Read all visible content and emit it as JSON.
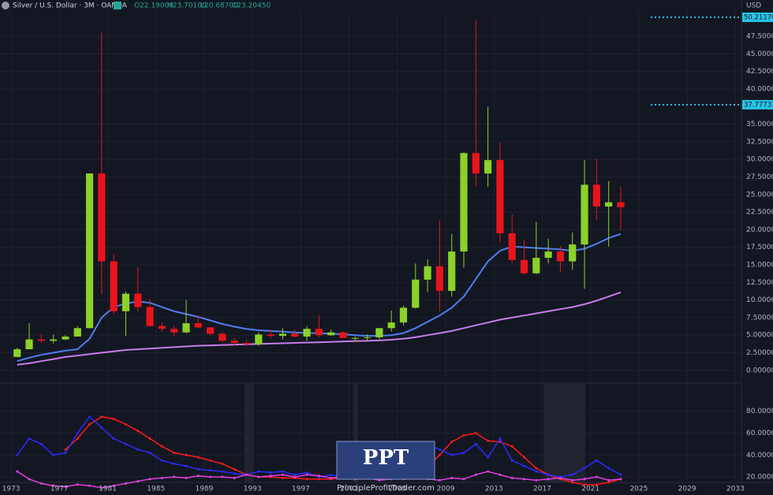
{
  "header": {
    "title": "Silver / U.S. Dollar · 3M · OANDA",
    "ohlc": [
      "O22.19000",
      "H23.70100",
      "L20.68700",
      "C23.20450"
    ],
    "currency": "USD"
  },
  "watermark": {
    "logo": "PPT",
    "site": "PrincipleProfitTrader.com"
  },
  "chart_data": {
    "type": "candlestick",
    "x": [
      1973,
      1974,
      1975,
      1976,
      1977,
      1978,
      1979,
      1980,
      1981,
      1982,
      1983,
      1984,
      1985,
      1986,
      1987,
      1988,
      1989,
      1990,
      1991,
      1992,
      1993,
      1994,
      1995,
      1996,
      1997,
      1998,
      1999,
      2000,
      2001,
      2002,
      2003,
      2004,
      2005,
      2006,
      2007,
      2008,
      2009,
      2010,
      2011,
      2012,
      2013,
      2014,
      2015,
      2016,
      2017,
      2018,
      2019,
      2020,
      2021,
      2022,
      2023
    ],
    "open": [
      1.9,
      3.0,
      4.4,
      4.2,
      4.4,
      4.8,
      6.0,
      28,
      15.5,
      8.4,
      10.9,
      9.0,
      6.3,
      5.9,
      5.4,
      6.7,
      6.1,
      5.2,
      4.2,
      3.9,
      3.7,
      5.1,
      4.9,
      5.2,
      4.8,
      5.9,
      5.0,
      5.4,
      4.6,
      4.6,
      4.7,
      6.0,
      6.8,
      8.9,
      12.9,
      14.8,
      11.3,
      16.9,
      30.9,
      28.0,
      29.9,
      19.5,
      15.7,
      13.8,
      16.0,
      16.9,
      15.5,
      17.9,
      26.4,
      23.3,
      23.9
    ],
    "high": [
      3.2,
      6.7,
      5.2,
      5.1,
      5.0,
      6.3,
      28.0,
      48,
      16.5,
      11.2,
      14.7,
      10.1,
      6.8,
      6.3,
      10.0,
      7.8,
      6.2,
      5.4,
      4.6,
      4.3,
      5.4,
      5.8,
      6.0,
      5.8,
      6.3,
      7.8,
      5.8,
      5.5,
      4.8,
      5.1,
      6.0,
      8.5,
      9.2,
      15.2,
      15.8,
      21.4,
      19.4,
      31.0,
      49.8,
      37.5,
      32.4,
      22.2,
      18.5,
      21.1,
      18.7,
      17.7,
      19.6,
      29.9,
      30.1,
      26.9,
      26.1
    ],
    "low": [
      1.9,
      3.0,
      3.9,
      3.8,
      4.3,
      4.8,
      6.0,
      10.8,
      8.0,
      4.9,
      8.4,
      6.2,
      5.5,
      4.8,
      5.3,
      6.0,
      5.0,
      3.9,
      3.5,
      3.6,
      3.5,
      4.6,
      4.4,
      4.7,
      4.2,
      4.7,
      4.9,
      4.6,
      4.1,
      4.2,
      4.4,
      5.5,
      6.4,
      8.8,
      11.1,
      8.4,
      10.5,
      14.6,
      26.2,
      26.1,
      18.2,
      15.3,
      13.6,
      13.7,
      15.2,
      13.9,
      14.3,
      11.6,
      21.4,
      17.6,
      19.9
    ],
    "close": [
      3.0,
      4.4,
      4.2,
      4.4,
      4.8,
      6.0,
      28.0,
      15.5,
      8.4,
      10.9,
      9.0,
      6.3,
      5.9,
      5.4,
      6.7,
      6.1,
      5.2,
      4.2,
      3.9,
      3.7,
      5.1,
      4.9,
      5.2,
      4.8,
      5.9,
      5.0,
      5.4,
      4.6,
      4.6,
      4.7,
      6.0,
      6.8,
      8.9,
      12.9,
      14.8,
      11.3,
      16.9,
      30.9,
      28.0,
      29.9,
      19.5,
      15.7,
      13.8,
      16.0,
      16.9,
      15.5,
      17.9,
      26.4,
      23.3,
      23.9,
      23.2
    ],
    "up_color": "#8bd12a",
    "down_color": "#e8151b",
    "overlays": [
      {
        "color": "#4f7df0",
        "values": [
          1.3,
          1.8,
          2.2,
          2.5,
          2.8,
          3.0,
          4.5,
          7.5,
          9.0,
          9.5,
          9.8,
          9.6,
          9.0,
          8.4,
          8.0,
          7.6,
          7.1,
          6.6,
          6.2,
          5.9,
          5.7,
          5.6,
          5.5,
          5.4,
          5.3,
          5.3,
          5.2,
          5.1,
          5.0,
          4.9,
          4.9,
          5.0,
          5.3,
          6.0,
          6.9,
          7.8,
          8.9,
          10.5,
          13.0,
          15.5,
          17.0,
          17.6,
          17.5,
          17.4,
          17.3,
          17.2,
          17.0,
          17.3,
          18.0,
          18.8,
          19.4
        ]
      },
      {
        "color": "#c77dea",
        "values": [
          0.8,
          1.0,
          1.3,
          1.6,
          1.9,
          2.1,
          2.3,
          2.5,
          2.7,
          2.9,
          3.0,
          3.1,
          3.2,
          3.3,
          3.4,
          3.5,
          3.55,
          3.6,
          3.65,
          3.7,
          3.75,
          3.8,
          3.85,
          3.9,
          3.95,
          4.0,
          4.05,
          4.1,
          4.15,
          4.2,
          4.25,
          4.35,
          4.5,
          4.7,
          5.0,
          5.3,
          5.6,
          6.0,
          6.4,
          6.8,
          7.2,
          7.5,
          7.8,
          8.1,
          8.4,
          8.7,
          9.0,
          9.4,
          9.9,
          10.5,
          11.1
        ]
      }
    ],
    "price_lines": [
      {
        "value": 50.2117,
        "label": "50.21170"
      },
      {
        "value": 37.77731,
        "label": "37.77731"
      }
    ],
    "price_line_color": "#29c4e8",
    "xlim": [
      1972.08,
      2033.5
    ],
    "xticks": [
      1973,
      1977,
      1981,
      1985,
      1989,
      1993,
      1997,
      2001,
      2005,
      2009,
      2013,
      2017,
      2021,
      2025,
      2029,
      2033
    ],
    "ylim": [
      -1.7,
      51.1
    ],
    "yticks": [
      {
        "value": 0,
        "label": "0.00000"
      },
      {
        "value": 2.5,
        "label": "2.50000"
      },
      {
        "value": 5,
        "label": "5.00000"
      },
      {
        "value": 7.5,
        "label": "7.50000"
      },
      {
        "value": 10,
        "label": "10.00000"
      },
      {
        "value": 12.5,
        "label": "12.50000"
      },
      {
        "value": 15,
        "label": "15.00000"
      },
      {
        "value": 17.5,
        "label": "17.50000"
      },
      {
        "value": 20,
        "label": "20.00000"
      },
      {
        "value": 22.5,
        "label": "22.50000"
      },
      {
        "value": 25,
        "label": "25.00000"
      },
      {
        "value": 27.5,
        "label": "27.50000"
      },
      {
        "value": 30,
        "label": "30.00000"
      },
      {
        "value": 32.5,
        "label": "32.50000"
      },
      {
        "value": 35,
        "label": "35.00000"
      },
      {
        "value": 40,
        "label": "40.00000"
      },
      {
        "value": 42.5,
        "label": "42.50000"
      },
      {
        "value": 45,
        "label": "45.00000"
      },
      {
        "value": 47.5,
        "label": "47.50000"
      }
    ],
    "grid": true,
    "indicator": {
      "type": "line",
      "ylim": [
        15,
        105
      ],
      "yticks": [
        {
          "value": 20,
          "label": "20.0000"
        },
        {
          "value": 40,
          "label": "40.0000"
        },
        {
          "value": 60,
          "label": "60.0000"
        },
        {
          "value": 80,
          "label": "80.0000"
        }
      ],
      "series": [
        {
          "color": "#ff1a1a",
          "values": [
            null,
            null,
            null,
            null,
            45,
            55,
            68,
            75,
            73,
            68,
            62,
            55,
            48,
            42,
            40,
            38,
            35,
            32,
            27,
            22,
            20,
            20,
            19,
            19,
            18,
            18,
            18,
            19,
            20,
            20,
            20,
            21,
            22,
            25,
            30,
            40,
            52,
            58,
            60,
            53,
            52,
            48,
            38,
            28,
            22,
            18,
            15,
            13,
            13,
            15,
            18
          ]
        },
        {
          "color": "#2a2aff",
          "values": [
            40,
            55,
            50,
            40,
            42,
            60,
            75,
            65,
            55,
            50,
            45,
            42,
            35,
            32,
            30,
            27,
            26,
            25,
            23,
            22,
            25,
            24,
            25,
            22,
            24,
            20,
            22,
            20,
            22,
            20,
            22,
            28,
            30,
            45,
            50,
            45,
            40,
            42,
            50,
            38,
            55,
            35,
            30,
            25,
            22,
            20,
            22,
            28,
            35,
            28,
            22
          ]
        },
        {
          "color": "#e040e0",
          "values": [
            25,
            18,
            14,
            12,
            11,
            13,
            12,
            10,
            12,
            14,
            16,
            18,
            19,
            20,
            19,
            21,
            20,
            20,
            19,
            22,
            20,
            21,
            22,
            20,
            22,
            21,
            19,
            20,
            18,
            19,
            17,
            18,
            18,
            19,
            18,
            17,
            19,
            18,
            22,
            25,
            22,
            19,
            18,
            17,
            18,
            19,
            17,
            18,
            20,
            17,
            18
          ]
        }
      ]
    }
  }
}
